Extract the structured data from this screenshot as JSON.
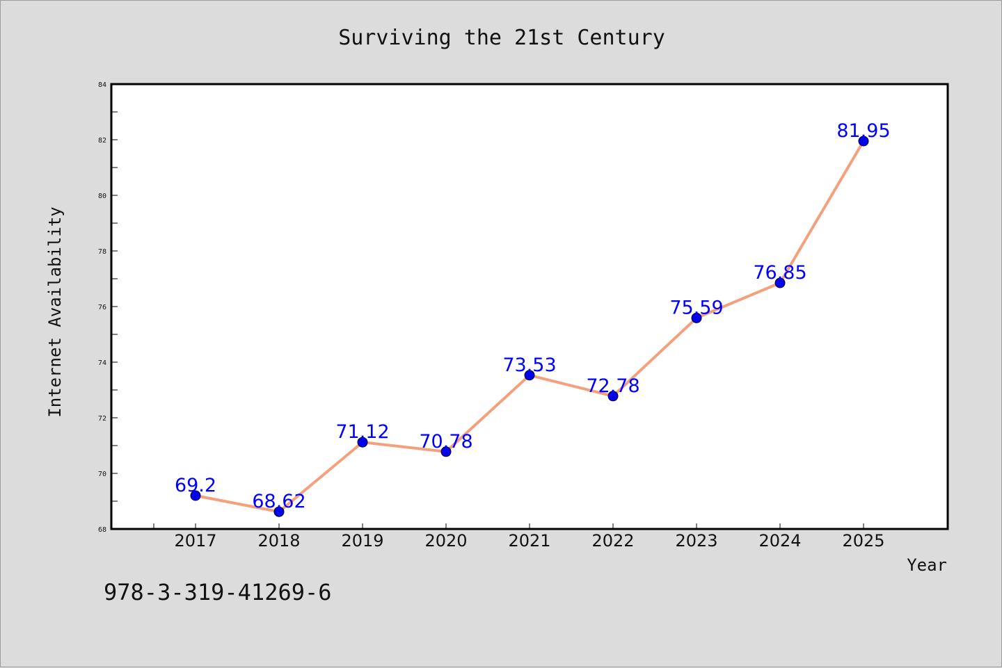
{
  "colors": {
    "background": "#dcdcdc",
    "plot_background": "#ffffff",
    "line": "#f4a07c",
    "marker": "#0000ee",
    "data_label": "#0000ff"
  },
  "footer": {
    "code": "978-3-319-41269-6"
  },
  "chart_data": {
    "type": "line",
    "title": "Surviving the 21st Century",
    "xlabel": "Year",
    "ylabel": "Internet Availability",
    "categories": [
      "2017",
      "2018",
      "2019",
      "2020",
      "2021",
      "2022",
      "2023",
      "2024",
      "2025"
    ],
    "series": [
      {
        "values": [
          69.2,
          68.62,
          71.12,
          70.78,
          73.53,
          72.78,
          75.59,
          76.85,
          81.95
        ]
      }
    ],
    "data_labels": [
      "69.2",
      "68.62",
      "71.12",
      "70.78",
      "73.53",
      "72.78",
      "75.59",
      "76.85",
      "81.95"
    ],
    "ylim": [
      68,
      84
    ],
    "yticks": [
      "68",
      "70",
      "72",
      "74",
      "76",
      "78",
      "80",
      "82",
      "84"
    ],
    "grid": false,
    "legend": "none"
  }
}
